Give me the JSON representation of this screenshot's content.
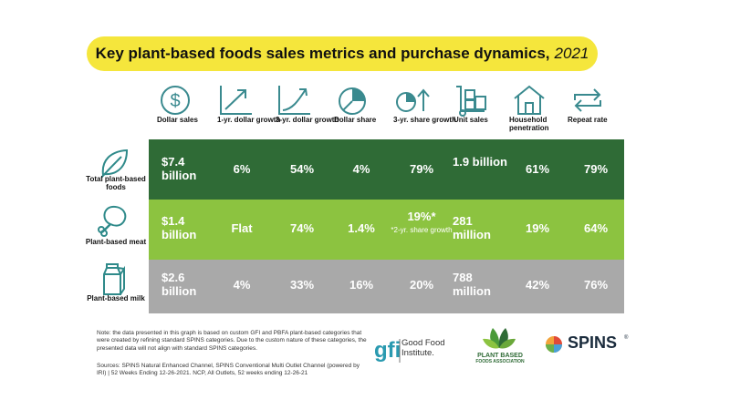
{
  "title": {
    "main": "Key plant-based foods sales metrics and purchase dynamics,",
    "year": "2021"
  },
  "colors": {
    "title_bg": "#f5e63c",
    "icon": "#3a8a8f",
    "total_row": "#2f6b36",
    "meat_row": "#8cc340",
    "milk_row": "#a9a9a9",
    "plant_icon": "#2f8a8a"
  },
  "columns": [
    {
      "label": "Dollar sales",
      "icon": "dollar-circle-icon"
    },
    {
      "label": "1-yr. dollar growth",
      "icon": "trend-up-arrow-icon"
    },
    {
      "label": "3-yr. dollar growth",
      "icon": "trend-curve-up-icon"
    },
    {
      "label": "Dollar share",
      "icon": "pie-chart-icon"
    },
    {
      "label": "3-yr. share growth",
      "icon": "pie-arrow-up-icon"
    },
    {
      "label": "Unit sales",
      "icon": "hand-truck-boxes-icon"
    },
    {
      "label": "Household penetration",
      "icon": "house-icon"
    },
    {
      "label": "Repeat rate",
      "icon": "repeat-arrows-icon"
    }
  ],
  "chart_data": {
    "type": "table",
    "columns": [
      "Dollar sales",
      "1-yr. dollar growth",
      "3-yr. dollar growth",
      "Dollar share",
      "3-yr. share growth",
      "Unit sales",
      "Household penetration",
      "Repeat rate"
    ],
    "rows": [
      {
        "label": "Total plant-based foods",
        "icon": "leaf-icon",
        "values": [
          "$7.4 billion",
          "6%",
          "54%",
          "4%",
          "79%",
          "1.9 billion",
          "61%",
          "79%"
        ]
      },
      {
        "label": "Plant-based meat",
        "icon": "drumstick-icon",
        "values": [
          "$1.4 billion",
          "Flat",
          "74%",
          "1.4%",
          "19%*",
          "281 million",
          "19%",
          "64%"
        ],
        "note": "*2-yr. share growth"
      },
      {
        "label": "Plant-based milk",
        "icon": "milk-carton-icon",
        "values": [
          "$2.6 billion",
          "4%",
          "33%",
          "16%",
          "20%",
          "788 million",
          "42%",
          "76%"
        ]
      }
    ]
  },
  "footnote": "Note: the data presented in this graph is based on custom GFI and PBFA plant-based categories that were created by refining standard SPINS categories. Due to the custom nature of these categories, the presented data will not align with standard SPINS categories.",
  "sources": "Sources: SPINS Natural Enhanced Channel, SPINS Conventional Multi Outlet Channel (powered by IRI) | 52 Weeks Ending 12-26-2021. NCP, All Outlets, 52 weeks ending 12-26-21",
  "logos": {
    "gfi": {
      "mark": "gfi",
      "name_line1": "Good Food",
      "name_line2": "Institute."
    },
    "pbfa": {
      "line1": "PLANT BASED",
      "line2": "FOODS ASSOCIATION"
    },
    "spins": {
      "name": "SPINS",
      "mark": "®"
    }
  }
}
